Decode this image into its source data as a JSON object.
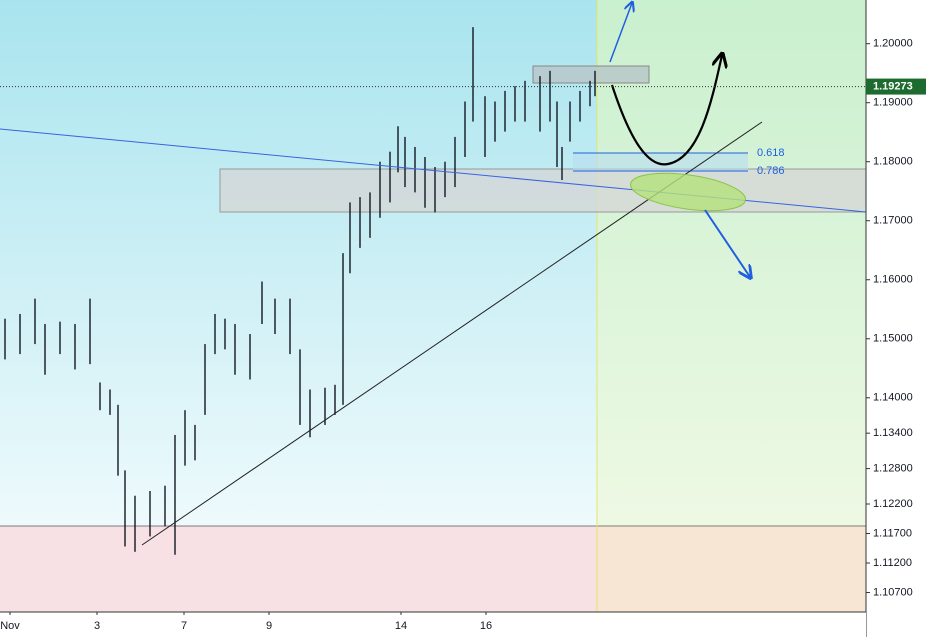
{
  "chart_data": {
    "type": "range_bar",
    "x": [
      1.25,
      5,
      8.75,
      11.25,
      15,
      18.75,
      22.5,
      25,
      27.5,
      29.5,
      31.25,
      33.75,
      37.5,
      41.25,
      43.75,
      46.25,
      48.75,
      51.25,
      53.75,
      56.25,
      58.75,
      62.5,
      65.5,
      68.75,
      72.5,
      75,
      77.5,
      81.25,
      83.75,
      85.75,
      87.5,
      90,
      92.5,
      95,
      97.5,
      99.5,
      101.25,
      103.75,
      106.25,
      108.75,
      111.25,
      113.75,
      116.25,
      118.25,
      121.25,
      123.75,
      126.25,
      128.75,
      131.25,
      135,
      137.5,
      139.25,
      140.5,
      142.5,
      145,
      147.5,
      148.75
    ],
    "high": [
      1.1534,
      1.1542,
      1.1568,
      1.1525,
      1.1529,
      1.1525,
      1.1568,
      1.1426,
      1.1414,
      1.1388,
      1.1277,
      1.1234,
      1.1242,
      1.1251,
      1.1337,
      1.1379,
      1.1354,
      1.1491,
      1.1542,
      1.1534,
      1.1525,
      1.1508,
      1.1597,
      1.1568,
      1.1568,
      1.1482,
      1.1414,
      1.1417,
      1.1422,
      1.1645,
      1.1731,
      1.174,
      1.1748,
      1.18,
      1.1817,
      1.186,
      1.1842,
      1.1825,
      1.1808,
      1.1791,
      1.18,
      1.1842,
      1.1902,
      1.2028,
      1.1911,
      1.1902,
      1.192,
      1.1928,
      1.1937,
      1.1945,
      1.1954,
      1.1902,
      1.1825,
      1.1902,
      1.192,
      1.1937,
      1.1954
    ],
    "low": [
      1.1465,
      1.1474,
      1.1491,
      1.1439,
      1.1474,
      1.1448,
      1.1457,
      1.1379,
      1.1371,
      1.1268,
      1.1148,
      1.1139,
      1.1165,
      1.1182,
      1.1134,
      1.1285,
      1.1294,
      1.1371,
      1.1474,
      1.1482,
      1.1439,
      1.1431,
      1.1525,
      1.1508,
      1.1474,
      1.1354,
      1.1333,
      1.1354,
      1.1371,
      1.1388,
      1.1611,
      1.1654,
      1.1671,
      1.1705,
      1.1731,
      1.1782,
      1.1757,
      1.1748,
      1.1722,
      1.1714,
      1.174,
      1.1757,
      1.1808,
      1.1868,
      1.1808,
      1.1834,
      1.1851,
      1.1868,
      1.1868,
      1.1851,
      1.1868,
      1.1791,
      1.1769,
      1.1834,
      1.1868,
      1.1894,
      1.1911
    ],
    "color": "#131722",
    "xlim": [
      0,
      216.5
    ],
    "xticks": [
      {
        "value": 2.5,
        "label": "Nov"
      },
      {
        "value": 24.25,
        "label": "3"
      },
      {
        "value": 46,
        "label": "7"
      },
      {
        "value": 67.25,
        "label": "9"
      },
      {
        "value": 100.25,
        "label": "14"
      },
      {
        "value": 121.5,
        "label": "16"
      }
    ],
    "ylim": [
      1.1037,
      1.2074
    ],
    "yticks": [
      {
        "value": 1.2,
        "label": "1.20000"
      },
      {
        "value": 1.19,
        "label": "1.19000"
      },
      {
        "value": 1.18,
        "label": "1.18000"
      },
      {
        "value": 1.17,
        "label": "1.17000"
      },
      {
        "value": 1.16,
        "label": "1.16000"
      },
      {
        "value": 1.15,
        "label": "1.15000"
      },
      {
        "value": 1.14,
        "label": "1.14000"
      },
      {
        "value": 1.134,
        "label": "1.13400"
      },
      {
        "value": 1.128,
        "label": "1.12800"
      },
      {
        "value": 1.122,
        "label": "1.12200"
      },
      {
        "value": 1.117,
        "label": "1.11700"
      },
      {
        "value": 1.112,
        "label": "1.11200"
      },
      {
        "value": 1.107,
        "label": "1.10700"
      }
    ],
    "last_price": 1.19273,
    "fib_levels": [
      0.618,
      0.786
    ]
  }
}
